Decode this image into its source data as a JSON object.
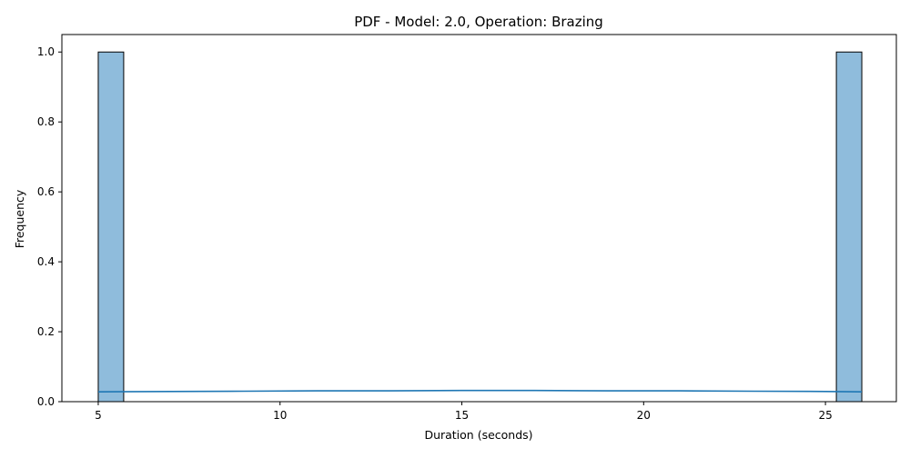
{
  "chart_data": {
    "type": "bar",
    "title": "PDF - Model: 2.0, Operation: Brazing",
    "xlabel": "Duration (seconds)",
    "ylabel": "Frequency",
    "xlim": [
      4.0,
      26.95
    ],
    "ylim": [
      0.0,
      1.05
    ],
    "xticks": [
      5,
      10,
      15,
      20,
      25
    ],
    "yticks": [
      0.0,
      0.2,
      0.4,
      0.6,
      0.8,
      1.0
    ],
    "xtick_labels": [
      "5",
      "10",
      "15",
      "20",
      "25"
    ],
    "ytick_labels": [
      "0.0",
      "0.2",
      "0.4",
      "0.6",
      "0.8",
      "1.0"
    ],
    "grid": false,
    "bars": [
      {
        "x_start": 5.0,
        "x_end": 5.7,
        "value": 1.0
      },
      {
        "x_start": 25.3,
        "x_end": 26.0,
        "value": 1.0
      }
    ],
    "kde_line": {
      "x": [
        5.0,
        7.0,
        9.0,
        11.0,
        13.0,
        15.0,
        17.0,
        19.0,
        21.0,
        23.0,
        25.0,
        26.0
      ],
      "y": [
        0.028,
        0.029,
        0.03,
        0.031,
        0.031,
        0.032,
        0.032,
        0.031,
        0.031,
        0.03,
        0.029,
        0.028
      ]
    },
    "colors": {
      "bar_fill": "#8fbcdc",
      "bar_edge": "#000000",
      "kde_line": "#1f77b4"
    }
  }
}
